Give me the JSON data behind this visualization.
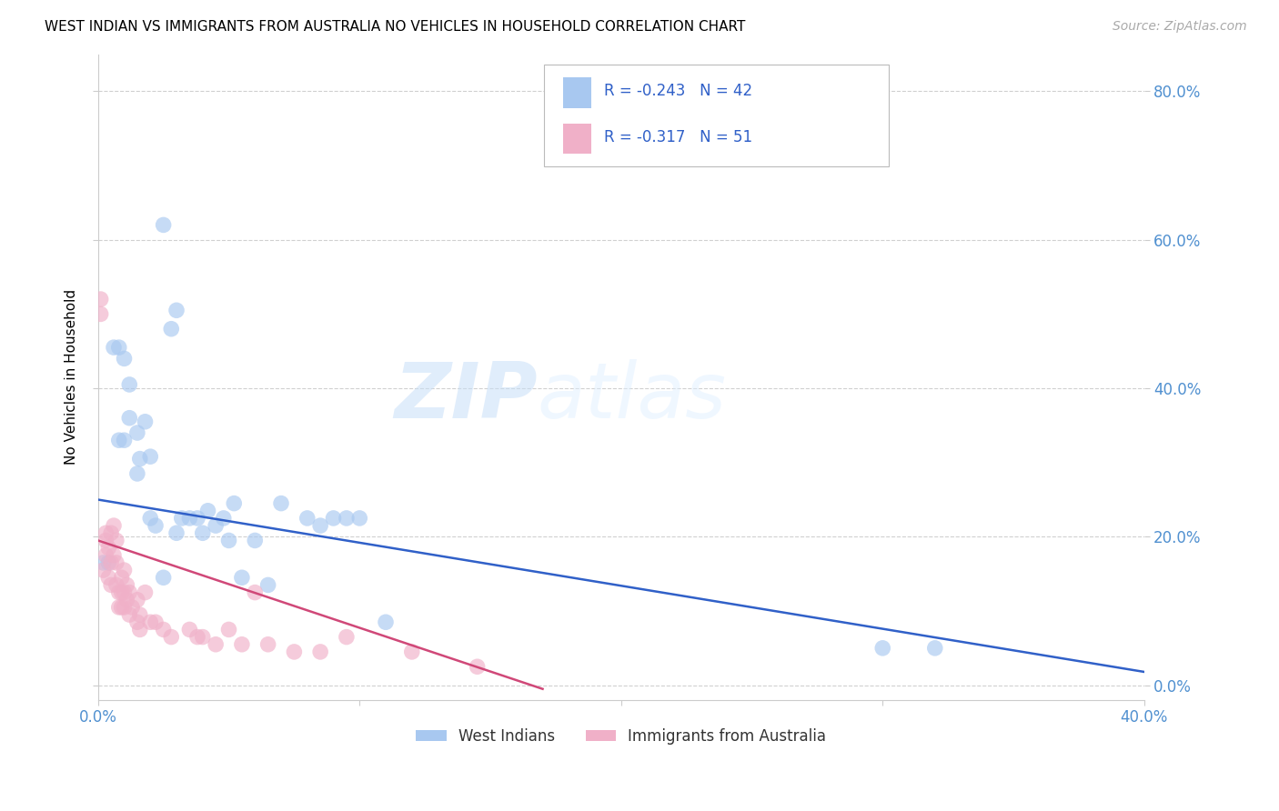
{
  "title": "WEST INDIAN VS IMMIGRANTS FROM AUSTRALIA NO VEHICLES IN HOUSEHOLD CORRELATION CHART",
  "source": "Source: ZipAtlas.com",
  "ylabel": "No Vehicles in Household",
  "xmin": 0.0,
  "xmax": 0.4,
  "ymin": -0.02,
  "ymax": 0.85,
  "xticks": [
    0.0,
    0.1,
    0.2,
    0.3,
    0.4
  ],
  "yticks": [
    0.0,
    0.2,
    0.4,
    0.6,
    0.8
  ],
  "xtick_labels_bottom": [
    "0.0%",
    "",
    "",
    "",
    "40.0%"
  ],
  "ytick_labels_right": [
    "0.0%",
    "20.0%",
    "40.0%",
    "60.0%",
    "80.0%"
  ],
  "legend_label1": "West Indians",
  "legend_label2": "Immigrants from Australia",
  "R1": "-0.243",
  "N1": "42",
  "R2": "-0.317",
  "N2": "51",
  "color1": "#a8c8f0",
  "color2": "#f0b0c8",
  "line_color1": "#3060c8",
  "line_color2": "#d04878",
  "watermark_zip": "ZIP",
  "watermark_atlas": "atlas",
  "blue_x": [
    0.002,
    0.004,
    0.006,
    0.008,
    0.008,
    0.01,
    0.01,
    0.012,
    0.012,
    0.015,
    0.015,
    0.016,
    0.018,
    0.02,
    0.02,
    0.022,
    0.025,
    0.025,
    0.028,
    0.03,
    0.03,
    0.032,
    0.035,
    0.038,
    0.04,
    0.042,
    0.045,
    0.048,
    0.05,
    0.052,
    0.055,
    0.06,
    0.065,
    0.07,
    0.08,
    0.085,
    0.09,
    0.095,
    0.1,
    0.11,
    0.3,
    0.32
  ],
  "blue_y": [
    0.165,
    0.165,
    0.455,
    0.455,
    0.33,
    0.44,
    0.33,
    0.405,
    0.36,
    0.285,
    0.34,
    0.305,
    0.355,
    0.308,
    0.225,
    0.215,
    0.145,
    0.62,
    0.48,
    0.505,
    0.205,
    0.225,
    0.225,
    0.225,
    0.205,
    0.235,
    0.215,
    0.225,
    0.195,
    0.245,
    0.145,
    0.195,
    0.135,
    0.245,
    0.225,
    0.215,
    0.225,
    0.225,
    0.225,
    0.085,
    0.05,
    0.05
  ],
  "pink_x": [
    0.001,
    0.001,
    0.002,
    0.003,
    0.003,
    0.003,
    0.004,
    0.004,
    0.005,
    0.005,
    0.005,
    0.006,
    0.006,
    0.007,
    0.007,
    0.007,
    0.008,
    0.008,
    0.009,
    0.009,
    0.009,
    0.01,
    0.01,
    0.01,
    0.011,
    0.011,
    0.012,
    0.012,
    0.013,
    0.015,
    0.015,
    0.016,
    0.016,
    0.018,
    0.02,
    0.022,
    0.025,
    0.028,
    0.035,
    0.038,
    0.04,
    0.045,
    0.05,
    0.055,
    0.06,
    0.065,
    0.075,
    0.085,
    0.095,
    0.12,
    0.145
  ],
  "pink_y": [
    0.52,
    0.5,
    0.155,
    0.205,
    0.195,
    0.175,
    0.185,
    0.145,
    0.205,
    0.165,
    0.135,
    0.215,
    0.175,
    0.195,
    0.165,
    0.135,
    0.125,
    0.105,
    0.145,
    0.125,
    0.105,
    0.155,
    0.125,
    0.105,
    0.135,
    0.115,
    0.125,
    0.095,
    0.105,
    0.115,
    0.085,
    0.095,
    0.075,
    0.125,
    0.085,
    0.085,
    0.075,
    0.065,
    0.075,
    0.065,
    0.065,
    0.055,
    0.075,
    0.055,
    0.125,
    0.055,
    0.045,
    0.045,
    0.065,
    0.045,
    0.025
  ]
}
